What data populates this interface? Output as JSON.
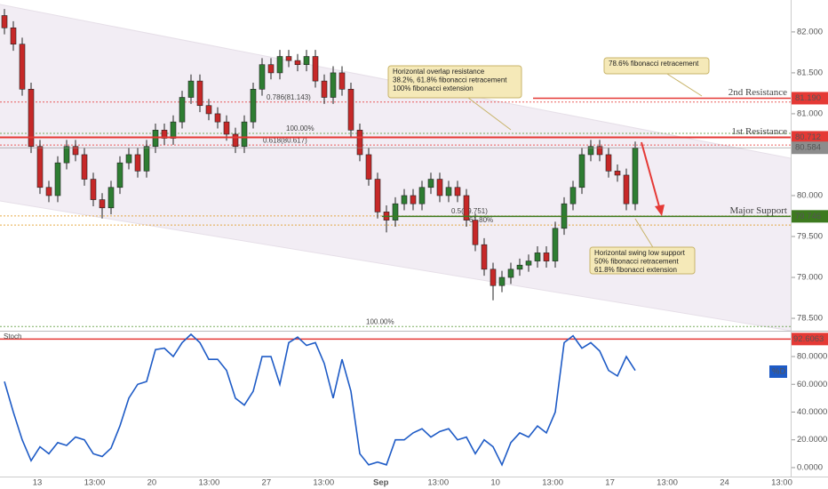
{
  "chart_data": {
    "type": "candlestick",
    "open": [
      82.2,
      82.05,
      81.85,
      81.3,
      80.6,
      80.1,
      80.0,
      80.4,
      80.6,
      80.5,
      80.2,
      79.95,
      79.85,
      80.1,
      80.4,
      80.5,
      80.3,
      80.6,
      80.8,
      80.7,
      80.9,
      81.2,
      81.4,
      81.1,
      81.0,
      80.9,
      80.75,
      80.6,
      80.9,
      81.3,
      81.6,
      81.5,
      81.7,
      81.65,
      81.6,
      81.7,
      81.4,
      81.2,
      81.5,
      81.3,
      80.8,
      80.5,
      80.2,
      79.8,
      79.7,
      79.9,
      80.0,
      79.9,
      80.1,
      80.2,
      80.0,
      80.1,
      80.0,
      79.7,
      79.4,
      79.1,
      78.9,
      79.0,
      79.1,
      79.15,
      79.2,
      79.3,
      79.2,
      79.6,
      79.9,
      80.1,
      80.5,
      80.6,
      80.5,
      80.3,
      80.25,
      79.9
    ],
    "high": [
      82.28,
      82.13,
      81.93,
      81.38,
      80.68,
      80.18,
      80.48,
      80.68,
      80.68,
      80.58,
      80.28,
      80.03,
      80.18,
      80.48,
      80.58,
      80.58,
      80.68,
      80.88,
      80.88,
      80.98,
      81.28,
      81.48,
      81.48,
      81.18,
      81.08,
      80.98,
      80.83,
      80.98,
      81.38,
      81.68,
      81.68,
      81.78,
      81.78,
      81.73,
      81.78,
      81.78,
      81.48,
      81.58,
      81.58,
      81.38,
      80.88,
      80.58,
      80.28,
      79.88,
      79.98,
      80.08,
      80.08,
      80.18,
      80.28,
      80.28,
      80.18,
      80.18,
      80.08,
      79.78,
      79.48,
      79.18,
      79.08,
      79.18,
      79.23,
      79.28,
      79.38,
      79.38,
      79.68,
      79.98,
      80.18,
      80.58,
      80.68,
      80.68,
      80.58,
      80.38,
      80.33,
      80.66
    ],
    "low": [
      81.97,
      81.77,
      81.22,
      80.52,
      80.02,
      79.92,
      79.92,
      80.32,
      80.42,
      80.12,
      79.87,
      79.72,
      79.77,
      80.02,
      80.32,
      80.22,
      80.22,
      80.52,
      80.62,
      80.62,
      80.82,
      81.12,
      81.02,
      80.92,
      80.82,
      80.67,
      80.52,
      80.52,
      80.82,
      81.22,
      81.42,
      81.42,
      81.57,
      81.52,
      81.52,
      81.32,
      81.12,
      81.12,
      81.22,
      80.72,
      80.42,
      80.12,
      79.72,
      79.55,
      79.62,
      79.82,
      79.82,
      79.82,
      80.02,
      79.92,
      79.92,
      79.92,
      79.62,
      79.32,
      79.02,
      78.72,
      78.82,
      78.92,
      79.02,
      79.07,
      79.12,
      79.12,
      79.12,
      79.52,
      79.82,
      80.02,
      80.42,
      80.42,
      80.22,
      80.17,
      79.82,
      79.82
    ],
    "close": [
      82.05,
      81.85,
      81.3,
      80.6,
      80.1,
      80.0,
      80.4,
      80.6,
      80.5,
      80.2,
      79.95,
      79.85,
      80.1,
      80.4,
      80.5,
      80.3,
      80.6,
      80.8,
      80.7,
      80.9,
      81.2,
      81.4,
      81.1,
      81.0,
      80.9,
      80.75,
      80.6,
      80.9,
      81.3,
      81.6,
      81.5,
      81.7,
      81.65,
      81.6,
      81.7,
      81.4,
      81.2,
      81.5,
      81.3,
      80.8,
      80.5,
      80.2,
      79.8,
      79.7,
      79.9,
      80.0,
      79.9,
      80.1,
      80.2,
      80.0,
      80.1,
      80.0,
      79.7,
      79.4,
      79.1,
      78.9,
      79.0,
      79.1,
      79.15,
      79.2,
      79.3,
      79.2,
      79.6,
      79.9,
      80.1,
      80.5,
      80.6,
      80.5,
      80.3,
      80.25,
      79.9,
      80.58
    ],
    "up_color": "#2e7d32",
    "down_color": "#c62828",
    "ylim": [
      78.37,
      82.39
    ],
    "yticks": [
      {
        "value": 78.5,
        "label": "78.500"
      },
      {
        "value": 79,
        "label": "79.000"
      },
      {
        "value": 79.5,
        "label": "79.500"
      },
      {
        "value": 80,
        "label": "80.000"
      },
      {
        "value": 81,
        "label": "81.000"
      },
      {
        "value": 81.5,
        "label": "81.500"
      },
      {
        "value": 82,
        "label": "82.000"
      }
    ],
    "xtick_labels": [
      "13",
      "13:00",
      "20",
      "13:00",
      "27",
      "13:00",
      "Sep",
      "13:00",
      "10",
      "13:00",
      "17",
      "13:00",
      "24",
      "13:00"
    ],
    "levels": [
      {
        "name": "2nd Resistance",
        "value": 81.19,
        "label": "81.190",
        "color": "#e53935"
      },
      {
        "name": "1st Resistance",
        "value": 80.712,
        "label": "80.712",
        "color": "#e53935"
      },
      {
        "name": "Major Support",
        "value": 79.746,
        "label": "79.746",
        "color": "#3d7a1f"
      }
    ],
    "last_price": {
      "value": 80.584,
      "label": "80.584",
      "color": "#8c8c8c"
    },
    "fib_levels": [
      {
        "label": "0.786(81.143)",
        "value": 81.143,
        "color": "#e53935"
      },
      {
        "label": "100.00%",
        "value": 80.76,
        "color": "#5a9a3a"
      },
      {
        "label": "0.618(80.617)",
        "value": 80.617,
        "color": "#e53935"
      },
      {
        "label": "0.5(79.751)",
        "value": 79.751,
        "color": "#e0961b"
      },
      {
        "label": "61.80%",
        "value": 79.64,
        "color": "#e0961b"
      },
      {
        "label": "100.00%",
        "value": 78.4,
        "color": "#5a9a3a"
      }
    ],
    "annotations": [
      [
        "Horizontal overlap resistance",
        "38.2%, 61.8% fibonacci retracement",
        "100% fibonacci extension"
      ],
      [
        "78.6% fibonacci retracement"
      ],
      [
        "Horizontal swing low support",
        "50% fibonacci retracement",
        "61.8% fibonacci extension"
      ]
    ],
    "stoch": {
      "name": "Stoch",
      "legend": "%D",
      "color": "#1e5bc6",
      "values": [
        62,
        40,
        20,
        5,
        15,
        10,
        18,
        16,
        22,
        20,
        10,
        8,
        14,
        30,
        50,
        60,
        62,
        85,
        86,
        80,
        90,
        96,
        90,
        78,
        78,
        70,
        50,
        45,
        55,
        80,
        80,
        60,
        90,
        94,
        88,
        90,
        75,
        50,
        78,
        55,
        10,
        2,
        4,
        2,
        20,
        20,
        25,
        28,
        22,
        26,
        28,
        20,
        22,
        10,
        20,
        15,
        2,
        18,
        25,
        22,
        30,
        25,
        40,
        90,
        95,
        86,
        90,
        84,
        70,
        66,
        80,
        70
      ],
      "ylim": [
        -5.8,
        97.3
      ],
      "yticks": [
        {
          "value": 0,
          "label": "0.0000"
        },
        {
          "value": 20,
          "label": "20.0000"
        },
        {
          "value": 40,
          "label": "40.0000"
        },
        {
          "value": 60,
          "label": "60.0000"
        },
        {
          "value": 80,
          "label": "80.0000"
        }
      ],
      "level": {
        "value": 92.6063,
        "label": "92.6063",
        "color": "#e53935"
      }
    }
  }
}
